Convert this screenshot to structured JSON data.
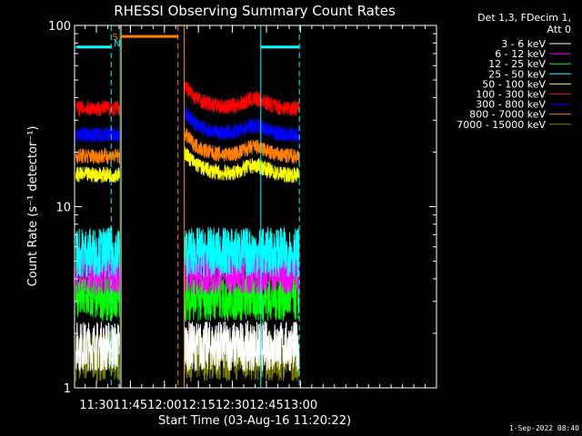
{
  "chart_data": {
    "type": "line",
    "title": "RHESSI Observing Summary Count Rates",
    "xlabel": "Start Time (03-Aug-16 11:20:22)",
    "ylabel": "Count Rate (s⁻¹ detector⁻¹)",
    "x_range_minutes": [
      20.37,
      180
    ],
    "y_range": [
      1,
      100
    ],
    "y_scale": "log",
    "x_ticks": [
      {
        "minute": 30,
        "label": "11:30"
      },
      {
        "minute": 45,
        "label": "11:45"
      },
      {
        "minute": 60,
        "label": "12:00"
      },
      {
        "minute": 75,
        "label": "12:15"
      },
      {
        "minute": 90,
        "label": "12:30"
      },
      {
        "minute": 105,
        "label": "12:45"
      },
      {
        "minute": 120,
        "label": "13:00"
      }
    ],
    "y_ticks": [
      {
        "value": 1,
        "label": "1"
      },
      {
        "value": 10,
        "label": "10"
      },
      {
        "value": 100,
        "label": "100"
      }
    ],
    "legend_header": [
      "Det 1,3, FDecim 1,",
      "Att 0"
    ],
    "legend_placement": "right",
    "series": [
      {
        "name": "3 - 6 keV",
        "color": "#ffffff",
        "level": 1.7
      },
      {
        "name": "6 - 12 keV",
        "color": "#ff00ff",
        "level": 4.5
      },
      {
        "name": "12 - 25 keV",
        "color": "#00ff00",
        "level": 3.2
      },
      {
        "name": "25 - 50 keV",
        "color": "#00ffff",
        "level": 5.6
      },
      {
        "name": "50 - 100 keV",
        "color": "#ffff00",
        "level": 15
      },
      {
        "name": "100 - 300 keV",
        "color": "#ff0000",
        "level": 35
      },
      {
        "name": "300 - 800 keV",
        "color": "#0000ff",
        "level": 25
      },
      {
        "name": "800 - 7000 keV",
        "color": "#ff8000",
        "level": 19
      },
      {
        "name": "7000 - 15000 keV",
        "color": "#808000",
        "level": 1.5
      }
    ],
    "data_segments_minutes": [
      [
        21,
        40.5
      ],
      [
        68.7,
        119.5
      ]
    ],
    "saa_bars": [
      {
        "start": 21,
        "end": 36.5,
        "color": "#00ffff",
        "level": 76
      },
      {
        "start": 102.5,
        "end": 119.5,
        "color": "#00ffff",
        "level": 76
      },
      {
        "start": 41,
        "end": 66,
        "color": "#ff8000",
        "level": 87
      }
    ],
    "vlines": [
      {
        "minute": 36.5,
        "color": "#00ffff",
        "style": "dashed"
      },
      {
        "minute": 40.5,
        "color": "#00ffff",
        "style": "solid"
      },
      {
        "minute": 41,
        "color": "#ff8000",
        "style": "solid"
      },
      {
        "minute": 66,
        "color": "#ff8000",
        "style": "dashed"
      },
      {
        "minute": 68.7,
        "color": "#ff8000",
        "style": "solid"
      },
      {
        "minute": 102.5,
        "color": "#00ffff",
        "style": "solid"
      },
      {
        "minute": 119.5,
        "color": "#00ffff",
        "style": "dashed"
      }
    ],
    "flags": [
      {
        "text": "S",
        "color": "#ff8000",
        "minute": 38.3
      },
      {
        "text": "N",
        "color": "#00ffff",
        "minute": 39.2
      }
    ]
  },
  "footer_timestamp": "1-Sep-2022 08:40"
}
